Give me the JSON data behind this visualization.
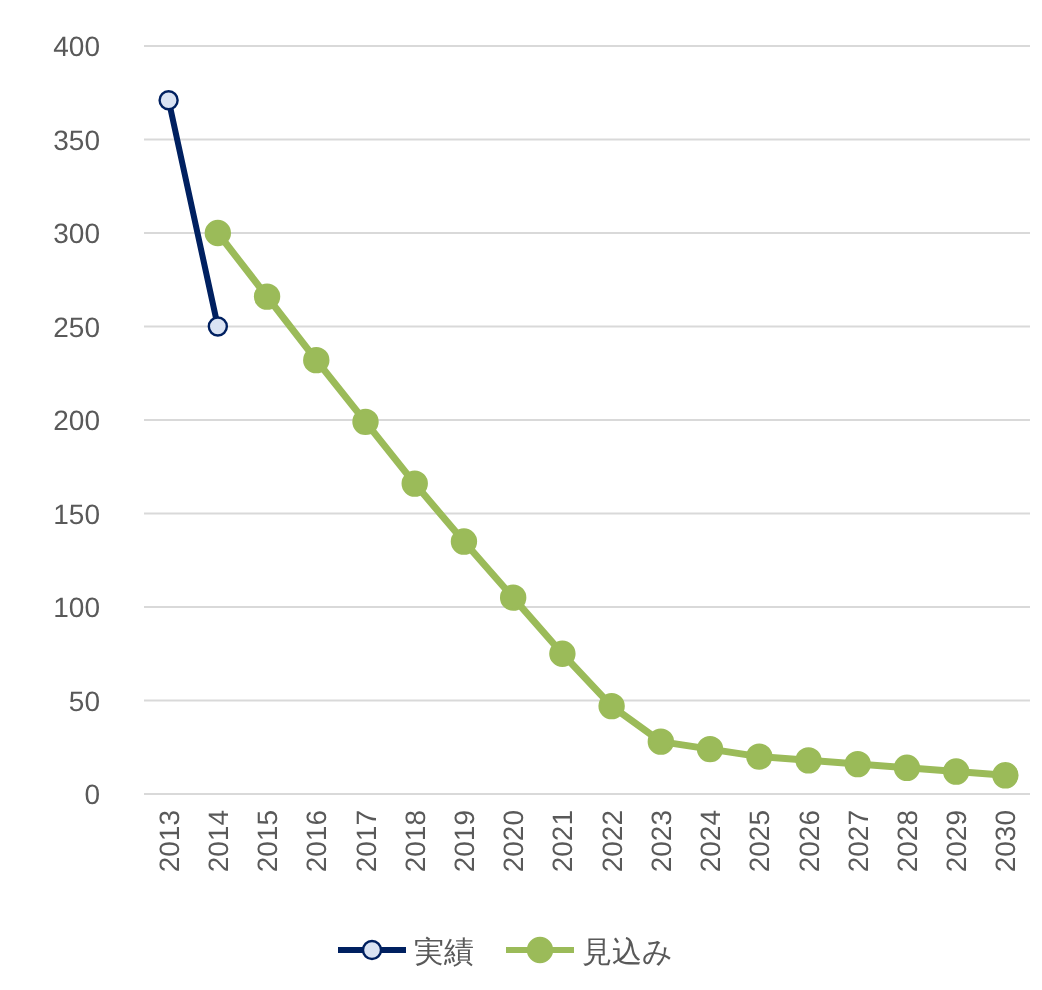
{
  "chart_data": {
    "type": "line",
    "categories": [
      "2013",
      "2014",
      "2015",
      "2016",
      "2017",
      "2018",
      "2019",
      "2020",
      "2021",
      "2022",
      "2023",
      "2024",
      "2025",
      "2026",
      "2027",
      "2028",
      "2029",
      "2030"
    ],
    "series": [
      {
        "name": "実績",
        "color": "#002060",
        "values": [
          371,
          250,
          null,
          null,
          null,
          null,
          null,
          null,
          null,
          null,
          null,
          null,
          null,
          null,
          null,
          null,
          null,
          null
        ]
      },
      {
        "name": "見込み",
        "color": "#9bbb59",
        "values": [
          null,
          300,
          266,
          232,
          199,
          166,
          135,
          105,
          75,
          47,
          28,
          24,
          20,
          18,
          16,
          14,
          12,
          10
        ]
      }
    ],
    "ylim": [
      0,
      400
    ],
    "yticks": [
      0,
      50,
      100,
      150,
      200,
      250,
      300,
      350,
      400
    ],
    "grid": "y",
    "legend": "bottom",
    "marker": "circle",
    "line_style": "solid"
  }
}
